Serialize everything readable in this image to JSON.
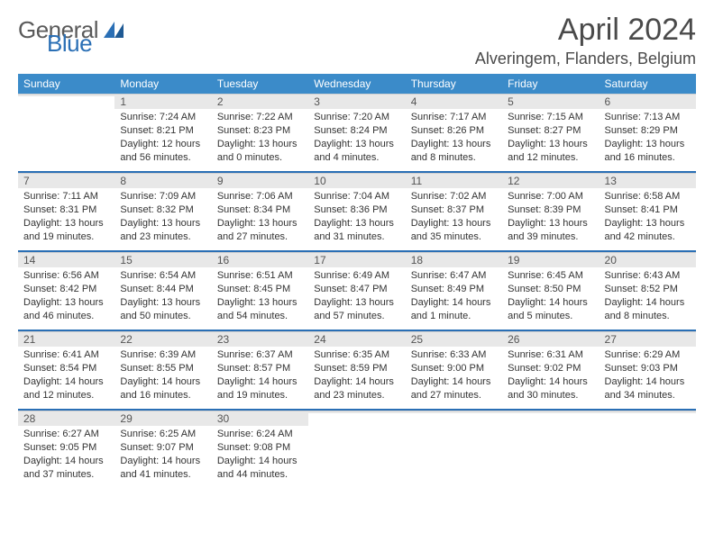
{
  "brand": {
    "general": "General",
    "blue": "Blue"
  },
  "title": "April 2024",
  "location": "Alveringem, Flanders, Belgium",
  "colors": {
    "header_bg": "#3b8bc9",
    "accent": "#2a6fb5",
    "daynum_bg": "#e8e8e8",
    "text": "#333333",
    "page_bg": "#ffffff"
  },
  "typography": {
    "title_fontsize": 34,
    "location_fontsize": 18,
    "dayheader_fontsize": 12,
    "body_fontsize": 11
  },
  "day_headers": [
    "Sunday",
    "Monday",
    "Tuesday",
    "Wednesday",
    "Thursday",
    "Friday",
    "Saturday"
  ],
  "weeks": [
    [
      null,
      {
        "n": "1",
        "sunrise": "Sunrise: 7:24 AM",
        "sunset": "Sunset: 8:21 PM",
        "daylight": "Daylight: 12 hours and 56 minutes."
      },
      {
        "n": "2",
        "sunrise": "Sunrise: 7:22 AM",
        "sunset": "Sunset: 8:23 PM",
        "daylight": "Daylight: 13 hours and 0 minutes."
      },
      {
        "n": "3",
        "sunrise": "Sunrise: 7:20 AM",
        "sunset": "Sunset: 8:24 PM",
        "daylight": "Daylight: 13 hours and 4 minutes."
      },
      {
        "n": "4",
        "sunrise": "Sunrise: 7:17 AM",
        "sunset": "Sunset: 8:26 PM",
        "daylight": "Daylight: 13 hours and 8 minutes."
      },
      {
        "n": "5",
        "sunrise": "Sunrise: 7:15 AM",
        "sunset": "Sunset: 8:27 PM",
        "daylight": "Daylight: 13 hours and 12 minutes."
      },
      {
        "n": "6",
        "sunrise": "Sunrise: 7:13 AM",
        "sunset": "Sunset: 8:29 PM",
        "daylight": "Daylight: 13 hours and 16 minutes."
      }
    ],
    [
      {
        "n": "7",
        "sunrise": "Sunrise: 7:11 AM",
        "sunset": "Sunset: 8:31 PM",
        "daylight": "Daylight: 13 hours and 19 minutes."
      },
      {
        "n": "8",
        "sunrise": "Sunrise: 7:09 AM",
        "sunset": "Sunset: 8:32 PM",
        "daylight": "Daylight: 13 hours and 23 minutes."
      },
      {
        "n": "9",
        "sunrise": "Sunrise: 7:06 AM",
        "sunset": "Sunset: 8:34 PM",
        "daylight": "Daylight: 13 hours and 27 minutes."
      },
      {
        "n": "10",
        "sunrise": "Sunrise: 7:04 AM",
        "sunset": "Sunset: 8:36 PM",
        "daylight": "Daylight: 13 hours and 31 minutes."
      },
      {
        "n": "11",
        "sunrise": "Sunrise: 7:02 AM",
        "sunset": "Sunset: 8:37 PM",
        "daylight": "Daylight: 13 hours and 35 minutes."
      },
      {
        "n": "12",
        "sunrise": "Sunrise: 7:00 AM",
        "sunset": "Sunset: 8:39 PM",
        "daylight": "Daylight: 13 hours and 39 minutes."
      },
      {
        "n": "13",
        "sunrise": "Sunrise: 6:58 AM",
        "sunset": "Sunset: 8:41 PM",
        "daylight": "Daylight: 13 hours and 42 minutes."
      }
    ],
    [
      {
        "n": "14",
        "sunrise": "Sunrise: 6:56 AM",
        "sunset": "Sunset: 8:42 PM",
        "daylight": "Daylight: 13 hours and 46 minutes."
      },
      {
        "n": "15",
        "sunrise": "Sunrise: 6:54 AM",
        "sunset": "Sunset: 8:44 PM",
        "daylight": "Daylight: 13 hours and 50 minutes."
      },
      {
        "n": "16",
        "sunrise": "Sunrise: 6:51 AM",
        "sunset": "Sunset: 8:45 PM",
        "daylight": "Daylight: 13 hours and 54 minutes."
      },
      {
        "n": "17",
        "sunrise": "Sunrise: 6:49 AM",
        "sunset": "Sunset: 8:47 PM",
        "daylight": "Daylight: 13 hours and 57 minutes."
      },
      {
        "n": "18",
        "sunrise": "Sunrise: 6:47 AM",
        "sunset": "Sunset: 8:49 PM",
        "daylight": "Daylight: 14 hours and 1 minute."
      },
      {
        "n": "19",
        "sunrise": "Sunrise: 6:45 AM",
        "sunset": "Sunset: 8:50 PM",
        "daylight": "Daylight: 14 hours and 5 minutes."
      },
      {
        "n": "20",
        "sunrise": "Sunrise: 6:43 AM",
        "sunset": "Sunset: 8:52 PM",
        "daylight": "Daylight: 14 hours and 8 minutes."
      }
    ],
    [
      {
        "n": "21",
        "sunrise": "Sunrise: 6:41 AM",
        "sunset": "Sunset: 8:54 PM",
        "daylight": "Daylight: 14 hours and 12 minutes."
      },
      {
        "n": "22",
        "sunrise": "Sunrise: 6:39 AM",
        "sunset": "Sunset: 8:55 PM",
        "daylight": "Daylight: 14 hours and 16 minutes."
      },
      {
        "n": "23",
        "sunrise": "Sunrise: 6:37 AM",
        "sunset": "Sunset: 8:57 PM",
        "daylight": "Daylight: 14 hours and 19 minutes."
      },
      {
        "n": "24",
        "sunrise": "Sunrise: 6:35 AM",
        "sunset": "Sunset: 8:59 PM",
        "daylight": "Daylight: 14 hours and 23 minutes."
      },
      {
        "n": "25",
        "sunrise": "Sunrise: 6:33 AM",
        "sunset": "Sunset: 9:00 PM",
        "daylight": "Daylight: 14 hours and 27 minutes."
      },
      {
        "n": "26",
        "sunrise": "Sunrise: 6:31 AM",
        "sunset": "Sunset: 9:02 PM",
        "daylight": "Daylight: 14 hours and 30 minutes."
      },
      {
        "n": "27",
        "sunrise": "Sunrise: 6:29 AM",
        "sunset": "Sunset: 9:03 PM",
        "daylight": "Daylight: 14 hours and 34 minutes."
      }
    ],
    [
      {
        "n": "28",
        "sunrise": "Sunrise: 6:27 AM",
        "sunset": "Sunset: 9:05 PM",
        "daylight": "Daylight: 14 hours and 37 minutes."
      },
      {
        "n": "29",
        "sunrise": "Sunrise: 6:25 AM",
        "sunset": "Sunset: 9:07 PM",
        "daylight": "Daylight: 14 hours and 41 minutes."
      },
      {
        "n": "30",
        "sunrise": "Sunrise: 6:24 AM",
        "sunset": "Sunset: 9:08 PM",
        "daylight": "Daylight: 14 hours and 44 minutes."
      },
      null,
      null,
      null,
      null
    ]
  ]
}
